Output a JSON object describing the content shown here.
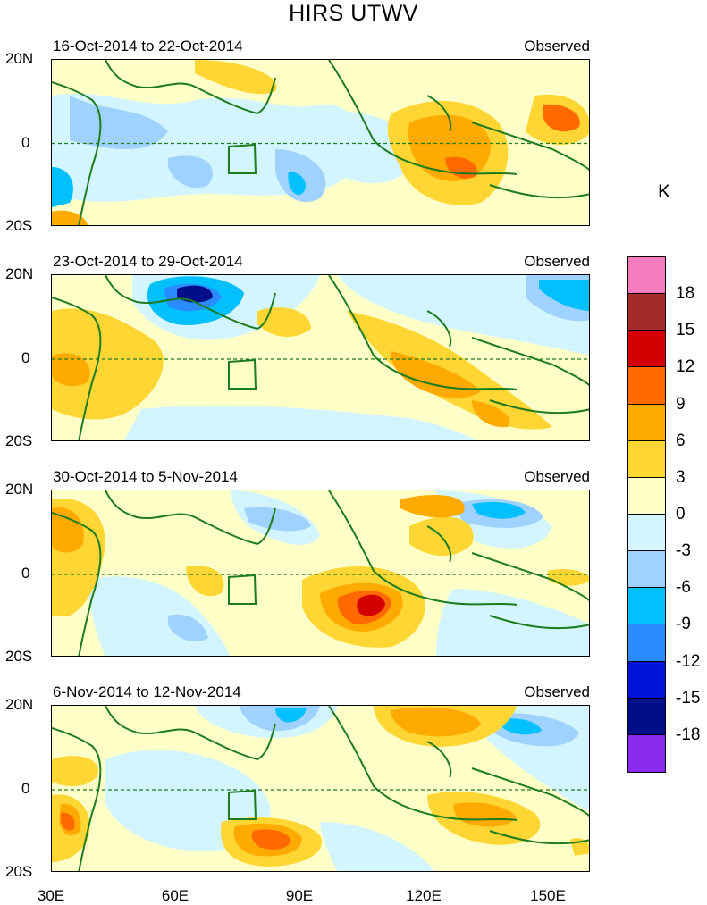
{
  "title": "HIRS UTWV",
  "panels": [
    {
      "date_range": "16-Oct-2014 to 22-Oct-2014",
      "type": "Observed"
    },
    {
      "date_range": "23-Oct-2014 to 29-Oct-2014",
      "type": "Observed"
    },
    {
      "date_range": "30-Oct-2014 to 5-Nov-2014",
      "type": "Observed"
    },
    {
      "date_range": "6-Nov-2014 to 12-Nov-2014",
      "type": "Observed"
    }
  ],
  "lat_labels": [
    "20N",
    "0",
    "20S"
  ],
  "lon_labels": [
    "30E",
    "60E",
    "90E",
    "120E",
    "150E"
  ],
  "colorbar": {
    "unit": "K",
    "labels": [
      "18",
      "15",
      "12",
      "9",
      "6",
      "3",
      "0",
      "-3",
      "-6",
      "-9",
      "-12",
      "-15",
      "-18"
    ],
    "colors": [
      "#f77bbf",
      "#a52a2a",
      "#d40000",
      "#ff6a00",
      "#ffaa00",
      "#ffd633",
      "#ffffc8",
      "#d2f5ff",
      "#a0d2ff",
      "#00c0ff",
      "#2b8cff",
      "#0011d8",
      "#000e8a",
      "#8c2bf0"
    ]
  },
  "colors": {
    "coast": "#1e7b1e",
    "equator": "#1e7b1e"
  }
}
